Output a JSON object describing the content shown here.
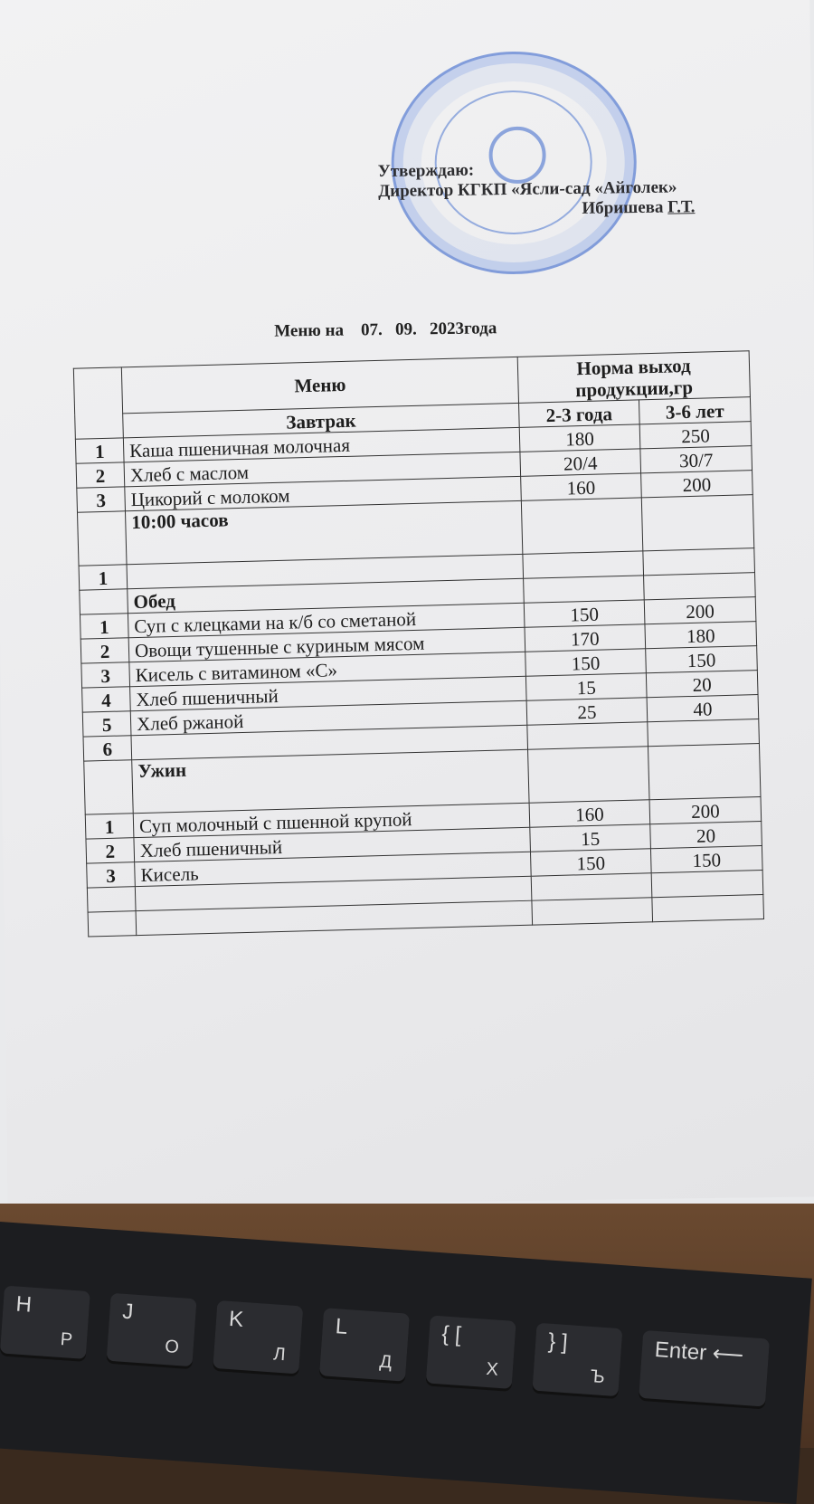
{
  "approval": {
    "line1": "Утверждаю:",
    "line2": "Директор КГКП «Ясли-сад «Айголек»",
    "name_prefix": "Ибришева ",
    "initials": "Г.Т."
  },
  "title": "Меню на    07.   09.   2023года",
  "table": {
    "header_menu": "Меню",
    "header_norm": "Норма выход продукции,гр",
    "age1": "2-3 года",
    "age2": "3-6 лет",
    "sections": [
      {
        "name": "Завтрак",
        "rows": [
          {
            "n": "1",
            "item": "Каша пшеничная  молочная",
            "a": "180",
            "b": "250"
          },
          {
            "n": "2",
            "item": "Хлеб с маслом",
            "a": "20/4",
            "b": "30/7"
          },
          {
            "n": "3",
            "item": "Цикорий с молоком",
            "a": "160",
            "b": "200"
          }
        ]
      },
      {
        "name": "10:00 часов",
        "rows": [
          {
            "n": "1",
            "item": "",
            "a": "",
            "b": ""
          }
        ]
      },
      {
        "name": "Обед",
        "rows": [
          {
            "n": "1",
            "item": "Суп с клецками  на к/б  со сметаной",
            "a": "150",
            "b": "200"
          },
          {
            "n": "2",
            "item": "Овощи тушенные с куриным мясом",
            "a": "170",
            "b": "180"
          },
          {
            "n": "3",
            "item": "Кисель с витамином «С»",
            "a": "150",
            "b": "150"
          },
          {
            "n": "4",
            "item": "Хлеб пшеничный",
            "a": "15",
            "b": "20"
          },
          {
            "n": "5",
            "item": "Хлеб ржаной",
            "a": "25",
            "b": "40"
          },
          {
            "n": "6",
            "item": "",
            "a": "",
            "b": ""
          }
        ]
      },
      {
        "name": "Ужин",
        "rows": [
          {
            "n": "1",
            "item": "Суп молочный с пшенной крупой",
            "a": "160",
            "b": "200"
          },
          {
            "n": "2",
            "item": "Хлеб пшеничный",
            "a": "15",
            "b": "20"
          },
          {
            "n": "3",
            "item": "Кисель",
            "a": "150",
            "b": "150"
          }
        ]
      }
    ]
  },
  "stamp_color": "#2f5fc8",
  "keyboard": {
    "keys": [
      {
        "top": "H",
        "bottom": "Р"
      },
      {
        "top": "J",
        "bottom": "О"
      },
      {
        "top": "K",
        "bottom": "Л"
      },
      {
        "top": "L",
        "bottom": "Д"
      },
      {
        "top": "{ [",
        "bottom": "Х"
      },
      {
        "top": "} ]",
        "bottom": "Ъ"
      },
      {
        "top": "Enter ⟵",
        "bottom": ""
      }
    ]
  }
}
